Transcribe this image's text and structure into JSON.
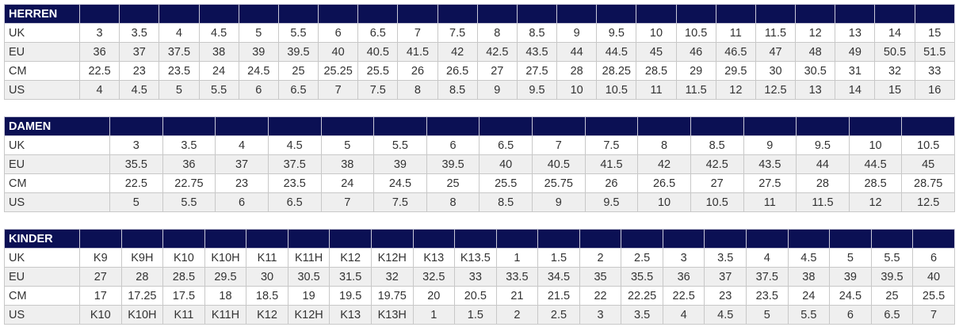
{
  "tables": [
    {
      "title": "HERREN",
      "rows": [
        {
          "label": "UK",
          "values": [
            "3",
            "3.5",
            "4",
            "4.5",
            "5",
            "5.5",
            "6",
            "6.5",
            "7",
            "7.5",
            "8",
            "8.5",
            "9",
            "9.5",
            "10",
            "10.5",
            "11",
            "11.5",
            "12",
            "13",
            "14",
            "15"
          ]
        },
        {
          "label": "EU",
          "values": [
            "36",
            "37",
            "37.5",
            "38",
            "39",
            "39.5",
            "40",
            "40.5",
            "41.5",
            "42",
            "42.5",
            "43.5",
            "44",
            "44.5",
            "45",
            "46",
            "46.5",
            "47",
            "48",
            "49",
            "50.5",
            "51.5"
          ]
        },
        {
          "label": "CM",
          "values": [
            "22.5",
            "23",
            "23.5",
            "24",
            "24.5",
            "25",
            "25.25",
            "25.5",
            "26",
            "26.5",
            "27",
            "27.5",
            "28",
            "28.25",
            "28.5",
            "29",
            "29.5",
            "30",
            "30.5",
            "31",
            "32",
            "33"
          ]
        },
        {
          "label": "US",
          "values": [
            "4",
            "4.5",
            "5",
            "5.5",
            "6",
            "6.5",
            "7",
            "7.5",
            "8",
            "8.5",
            "9",
            "9.5",
            "10",
            "10.5",
            "11",
            "11.5",
            "12",
            "12.5",
            "13",
            "14",
            "15",
            "16"
          ]
        }
      ]
    },
    {
      "title": "DAMEN",
      "rows": [
        {
          "label": "UK",
          "values": [
            "3",
            "3.5",
            "4",
            "4.5",
            "5",
            "5.5",
            "6",
            "6.5",
            "7",
            "7.5",
            "8",
            "8.5",
            "9",
            "9.5",
            "10",
            "10.5"
          ]
        },
        {
          "label": "EU",
          "values": [
            "35.5",
            "36",
            "37",
            "37.5",
            "38",
            "39",
            "39.5",
            "40",
            "40.5",
            "41.5",
            "42",
            "42.5",
            "43.5",
            "44",
            "44.5",
            "45"
          ]
        },
        {
          "label": "CM",
          "values": [
            "22.5",
            "22.75",
            "23",
            "23.5",
            "24",
            "24.5",
            "25",
            "25.5",
            "25.75",
            "26",
            "26.5",
            "27",
            "27.5",
            "28",
            "28.5",
            "28.75"
          ]
        },
        {
          "label": "US",
          "values": [
            "5",
            "5.5",
            "6",
            "6.5",
            "7",
            "7.5",
            "8",
            "8.5",
            "9",
            "9.5",
            "10",
            "10.5",
            "11",
            "11.5",
            "12",
            "12.5"
          ]
        }
      ]
    },
    {
      "title": "KINDER",
      "rows": [
        {
          "label": "UK",
          "values": [
            "K9",
            "K9H",
            "K10",
            "K10H",
            "K11",
            "K11H",
            "K12",
            "K12H",
            "K13",
            "K13.5",
            "1",
            "1.5",
            "2",
            "2.5",
            "3",
            "3.5",
            "4",
            "4.5",
            "5",
            "5.5",
            "6"
          ]
        },
        {
          "label": "EU",
          "values": [
            "27",
            "28",
            "28.5",
            "29.5",
            "30",
            "30.5",
            "31.5",
            "32",
            "32.5",
            "33",
            "33.5",
            "34.5",
            "35",
            "35.5",
            "36",
            "37",
            "37.5",
            "38",
            "39",
            "39.5",
            "40"
          ]
        },
        {
          "label": "CM",
          "values": [
            "17",
            "17.25",
            "17.5",
            "18",
            "18.5",
            "19",
            "19.5",
            "19.75",
            "20",
            "20.5",
            "21",
            "21.5",
            "22",
            "22.25",
            "22.5",
            "23",
            "23.5",
            "24",
            "24.5",
            "25",
            "25.5"
          ]
        },
        {
          "label": "US",
          "values": [
            "K10",
            "K10H",
            "K11",
            "K11H",
            "K12",
            "K12H",
            "K13",
            "K13H",
            "1",
            "1.5",
            "2",
            "2.5",
            "3",
            "3.5",
            "4",
            "4.5",
            "5",
            "5.5",
            "6",
            "6.5",
            "7"
          ]
        }
      ]
    }
  ]
}
